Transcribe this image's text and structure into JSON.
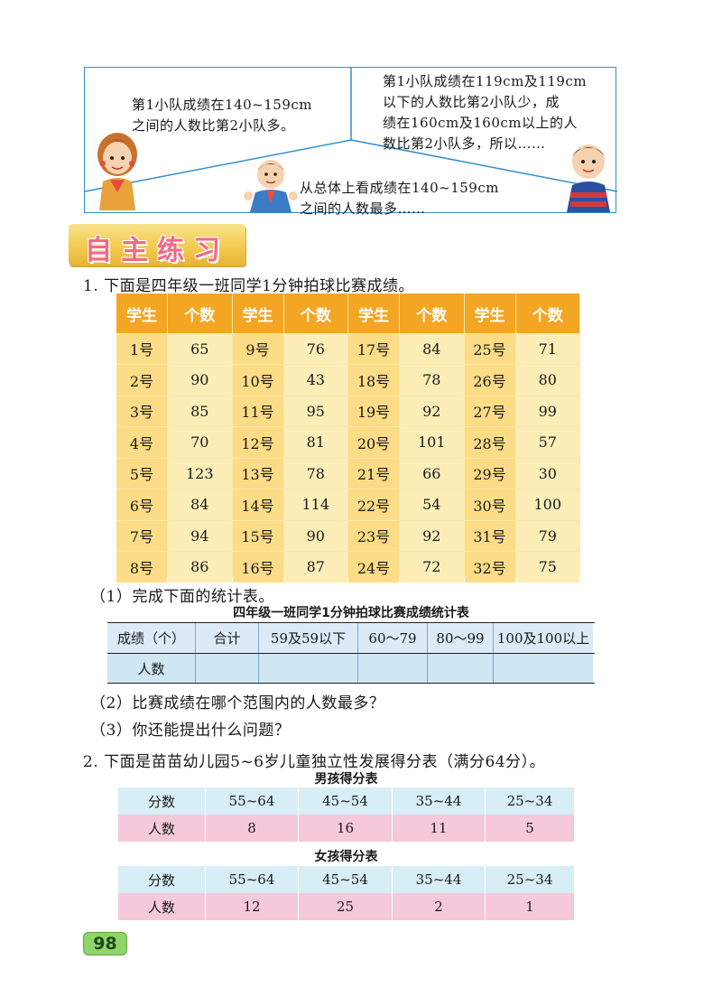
{
  "dialogue": {
    "bubble_left": [
      "第1小队成绩在140~159cm",
      "之间的人数比第2小队多。"
    ],
    "bubble_right": [
      "第1小队成绩在119cm及119cm",
      "以下的人数比第2小队少，成",
      "绩在160cm及160cm以上的人",
      "数比第2小队多，所以……"
    ],
    "bubble_bottom": [
      "从总体上看成绩在140~159cm",
      "之间的人数最多……"
    ]
  },
  "section_title": "自主练习",
  "q1": {
    "text": "1. 下面是四年级一班同学1分钟拍球比赛成绩。",
    "header_student": "学生",
    "header_count": "个数",
    "columns": [
      {
        "students": [
          "1号",
          "2号",
          "3号",
          "4号",
          "5号",
          "6号",
          "7号",
          "8号"
        ],
        "counts": [
          "65",
          "90",
          "85",
          "70",
          "123",
          "84",
          "94",
          "86"
        ]
      },
      {
        "students": [
          "9号",
          "10号",
          "11号",
          "12号",
          "13号",
          "14号",
          "15号",
          "16号"
        ],
        "counts": [
          "76",
          "43",
          "95",
          "81",
          "78",
          "114",
          "90",
          "87"
        ]
      },
      {
        "students": [
          "17号",
          "18号",
          "19号",
          "20号",
          "21号",
          "22号",
          "23号",
          "24号"
        ],
        "counts": [
          "84",
          "78",
          "92",
          "101",
          "66",
          "54",
          "92",
          "72"
        ]
      },
      {
        "students": [
          "25号",
          "26号",
          "27号",
          "28号",
          "29号",
          "30号",
          "31号",
          "32号"
        ],
        "counts": [
          "71",
          "80",
          "99",
          "57",
          "30",
          "100",
          "79",
          "75"
        ]
      }
    ],
    "sub1": "（1）完成下面的统计表。",
    "stats_table": {
      "caption": "四年级一班同学1分钟拍球比赛成绩统计表",
      "headers": [
        "成绩（个）",
        "合计",
        "59及59以下",
        "60～79",
        "80～99",
        "100及100以上"
      ],
      "row_label": "人数"
    },
    "sub2": "（2）比赛成绩在哪个范围内的人数最多？",
    "sub3": "（3）你还能提出什么问题？"
  },
  "q2": {
    "text": "2. 下面是苗苗幼儿园5~6岁儿童独立性发展得分表（满分64分）。",
    "boys": {
      "caption": "男孩得分表",
      "headers": [
        "分数",
        "55~64",
        "45~54",
        "35~44",
        "25~34"
      ],
      "row": [
        "人数",
        "8",
        "16",
        "11",
        "5"
      ]
    },
    "girls": {
      "caption": "女孩得分表",
      "headers": [
        "分数",
        "55~64",
        "45~54",
        "35~44",
        "25~34"
      ],
      "row": [
        "人数",
        "12",
        "25",
        "2",
        "1"
      ]
    }
  },
  "page_number": "98",
  "colors": {
    "panel_border": "#2f8fd0",
    "table_header": "#f3a623",
    "section_title": "#ef6a86",
    "page_badge": "#8fd36a"
  }
}
